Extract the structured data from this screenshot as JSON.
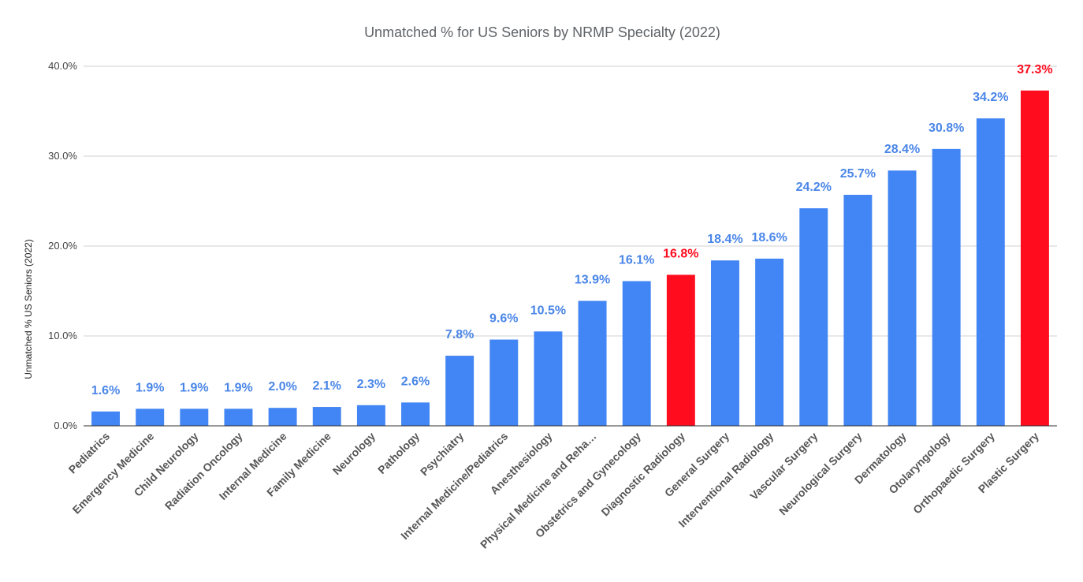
{
  "chart_data": {
    "type": "bar",
    "title": "Unmatched % for US Seniors by NRMP Specialty (2022)",
    "xlabel": "",
    "ylabel": "Unmatched % US Seniors (2022)",
    "ylim": [
      0,
      40
    ],
    "yticks": [
      0,
      10,
      20,
      30,
      40
    ],
    "ytick_labels": [
      "0.0%",
      "10.0%",
      "20.0%",
      "30.0%",
      "40.0%"
    ],
    "grid": true,
    "legend": "none",
    "categories": [
      "Pediatrics",
      "Emergency Medicine",
      "Child Neurology",
      "Radiation Oncology",
      "Internal Medicine",
      "Family Medicine",
      "Neurology",
      "Pathology",
      "Psychiatry",
      "Internal Medicine/Pediatrics",
      "Anesthesiology",
      "Physical Medicine and Reha…",
      "Obstetrics and Gynecology",
      "Diagnostic Radiology",
      "General Surgery",
      "Interventional Radiology",
      "Vascular Surgery",
      "Neurological Surgery",
      "Dermatology",
      "Otolaryngology",
      "Orthopaedic Surgery",
      "Plastic Surgery"
    ],
    "values": [
      1.6,
      1.9,
      1.9,
      1.9,
      2.0,
      2.1,
      2.3,
      2.6,
      7.8,
      9.6,
      10.5,
      13.9,
      16.1,
      16.8,
      18.4,
      18.6,
      24.2,
      25.7,
      28.4,
      30.8,
      34.2,
      37.3
    ],
    "data_labels": [
      "1.6%",
      "1.9%",
      "1.9%",
      "1.9%",
      "2.0%",
      "2.1%",
      "2.3%",
      "2.6%",
      "7.8%",
      "9.6%",
      "10.5%",
      "13.9%",
      "16.1%",
      "16.8%",
      "18.4%",
      "18.6%",
      "24.2%",
      "25.7%",
      "28.4%",
      "30.8%",
      "34.2%",
      "37.3%"
    ],
    "highlighted": [
      "Diagnostic Radiology",
      "Plastic Surgery"
    ],
    "colors": {
      "bar": "#4285f4",
      "highlight": "#ff0d1f",
      "label": "#4a86e8",
      "highlight_label": "#ff0d1f"
    }
  }
}
